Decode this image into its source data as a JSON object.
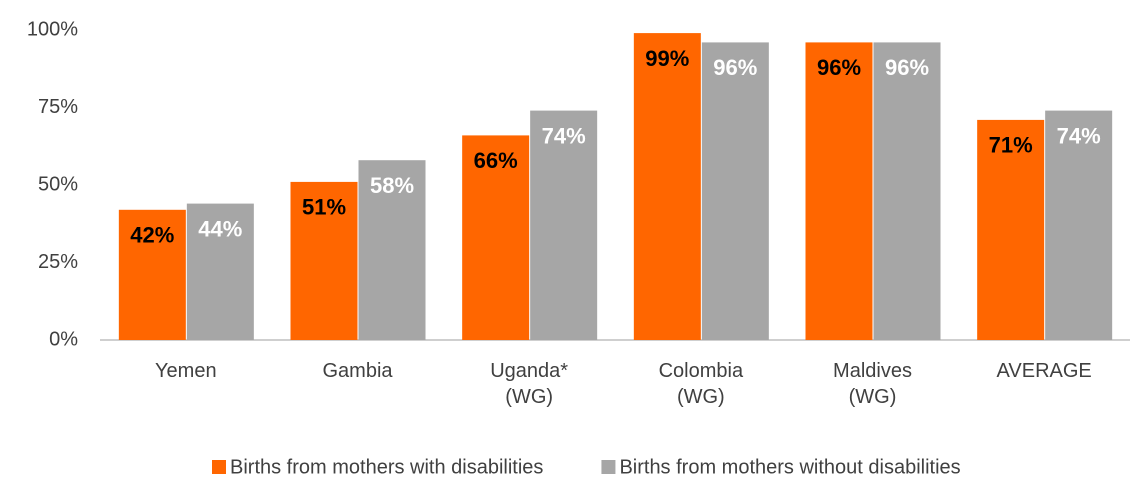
{
  "chart_data": {
    "type": "bar",
    "categories": [
      "Yemen",
      "Gambia",
      "Uganda*\n(WG)",
      "Colombia\n(WG)",
      "Maldives\n(WG)",
      "AVERAGE"
    ],
    "series": [
      {
        "name": "Births from mothers with disabilities",
        "color": "#ff6600",
        "label_color": "#000000",
        "values": [
          42,
          51,
          66,
          99,
          96,
          71
        ],
        "value_labels": [
          "42%",
          "51%",
          "66%",
          "99%",
          "96%",
          "71%"
        ]
      },
      {
        "name": "Births from mothers without disabilities",
        "color": "#a6a6a6",
        "label_color": "#ffffff",
        "values": [
          44,
          58,
          74,
          96,
          96,
          74
        ],
        "value_labels": [
          "44%",
          "58%",
          "74%",
          "96%",
          "96%",
          "74%"
        ]
      }
    ],
    "ylim": [
      0,
      100
    ],
    "yticks": [
      {
        "value": 0,
        "label": "0%"
      },
      {
        "value": 25,
        "label": "25%"
      },
      {
        "value": 50,
        "label": "50%"
      },
      {
        "value": 75,
        "label": "75%"
      },
      {
        "value": 100,
        "label": "100%"
      }
    ],
    "grid": false,
    "legend": "bottom"
  }
}
